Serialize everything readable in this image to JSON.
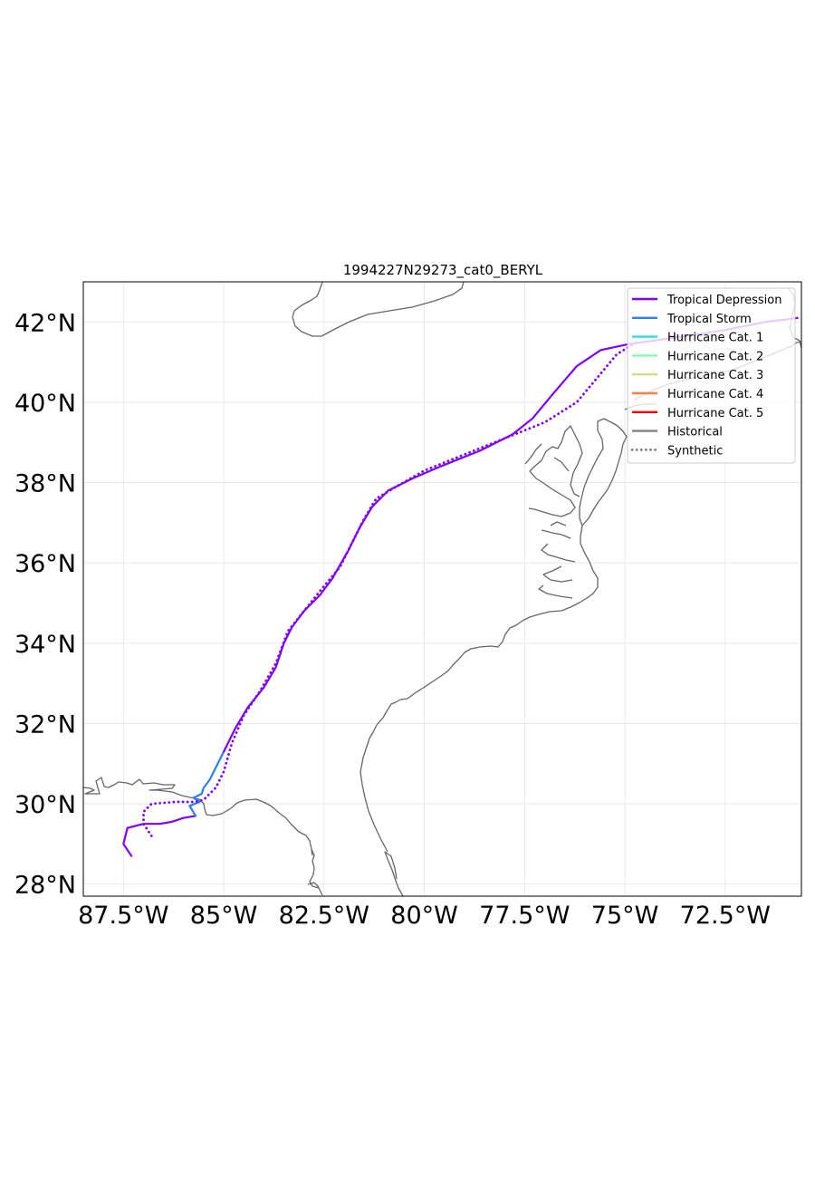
{
  "title": "1994227N29273_cat0_BERYL",
  "map": {
    "lon_range": [
      -88.5,
      -70.6
    ],
    "lat_range": [
      27.7,
      43.0
    ],
    "lon_ticks": [
      {
        "value": -87.5,
        "label": "87.5°W"
      },
      {
        "value": -85.0,
        "label": "85°W"
      },
      {
        "value": -82.5,
        "label": "82.5°W"
      },
      {
        "value": -80.0,
        "label": "80°W"
      },
      {
        "value": -77.5,
        "label": "77.5°W"
      },
      {
        "value": -75.0,
        "label": "75°W"
      },
      {
        "value": -72.5,
        "label": "72.5°W"
      }
    ],
    "lat_ticks": [
      {
        "value": 28,
        "label": "28°N"
      },
      {
        "value": 30,
        "label": "30°N"
      },
      {
        "value": 32,
        "label": "32°N"
      },
      {
        "value": 34,
        "label": "34°N"
      },
      {
        "value": 36,
        "label": "36°N"
      },
      {
        "value": 38,
        "label": "38°N"
      },
      {
        "value": 40,
        "label": "40°N"
      },
      {
        "value": 42,
        "label": "42°N"
      }
    ],
    "gridlines": true,
    "coastline_color": "#666666"
  },
  "legend": {
    "placement": "top-right",
    "entries": [
      {
        "label": "Tropical Depression",
        "color": "#7f00ff",
        "style": "solid"
      },
      {
        "label": "Tropical Storm",
        "color": "#2c7fef",
        "style": "solid"
      },
      {
        "label": "Hurricane Cat. 1",
        "color": "#2adddd",
        "style": "solid"
      },
      {
        "label": "Hurricane Cat. 2",
        "color": "#80ffb4",
        "style": "solid"
      },
      {
        "label": "Hurricane Cat. 3",
        "color": "#d4dd80",
        "style": "solid"
      },
      {
        "label": "Hurricane Cat. 4",
        "color": "#ff7f43",
        "style": "solid"
      },
      {
        "label": "Hurricane Cat. 5",
        "color": "#ff0000",
        "style": "solid"
      },
      {
        "label": "Historical",
        "color": "#808080",
        "style": "solid"
      },
      {
        "label": "Synthetic",
        "color": "#808080",
        "style": "dotted"
      }
    ]
  },
  "tracks": {
    "historical": [
      {
        "category": "Tropical Depression",
        "points": [
          [
            -87.3,
            28.7
          ],
          [
            -87.5,
            29.0
          ],
          [
            -87.4,
            29.4
          ],
          [
            -87.0,
            29.5
          ],
          [
            -86.6,
            29.5
          ],
          [
            -86.3,
            29.55
          ],
          [
            -86.0,
            29.65
          ],
          [
            -85.7,
            29.7
          ]
        ]
      },
      {
        "category": "Tropical Storm",
        "points": [
          [
            -85.7,
            29.7
          ],
          [
            -85.85,
            29.95
          ],
          [
            -85.6,
            30.05
          ],
          [
            -85.75,
            30.15
          ],
          [
            -85.55,
            30.25
          ],
          [
            -85.5,
            30.4
          ],
          [
            -85.35,
            30.6
          ],
          [
            -85.2,
            30.9
          ],
          [
            -85.0,
            31.3
          ]
        ]
      },
      {
        "category": "Tropical Depression",
        "points": [
          [
            -85.0,
            31.3
          ],
          [
            -84.7,
            31.9
          ],
          [
            -84.4,
            32.4
          ],
          [
            -84.0,
            32.9
          ],
          [
            -83.7,
            33.4
          ],
          [
            -83.5,
            34.0
          ],
          [
            -83.3,
            34.4
          ],
          [
            -83.0,
            34.8
          ],
          [
            -82.6,
            35.2
          ],
          [
            -82.3,
            35.6
          ],
          [
            -81.9,
            36.3
          ],
          [
            -81.6,
            36.9
          ],
          [
            -81.3,
            37.4
          ],
          [
            -80.9,
            37.8
          ],
          [
            -80.3,
            38.1
          ],
          [
            -79.6,
            38.4
          ],
          [
            -78.6,
            38.8
          ],
          [
            -77.8,
            39.2
          ],
          [
            -77.3,
            39.6
          ],
          [
            -76.8,
            40.2
          ],
          [
            -76.2,
            40.9
          ],
          [
            -75.6,
            41.3
          ],
          [
            -74.9,
            41.45
          ],
          [
            -73.8,
            41.6
          ],
          [
            -72.5,
            41.8
          ],
          [
            -71.5,
            42.0
          ],
          [
            -70.7,
            42.1
          ]
        ]
      }
    ],
    "synthetic": [
      {
        "category": "Tropical Depression",
        "points": [
          [
            -86.8,
            29.2
          ],
          [
            -87.0,
            29.5
          ],
          [
            -87.0,
            29.8
          ],
          [
            -86.8,
            30.0
          ],
          [
            -86.2,
            30.05
          ],
          [
            -85.7,
            30.05
          ],
          [
            -85.5,
            30.1
          ],
          [
            -85.2,
            30.4
          ],
          [
            -85.0,
            30.8
          ],
          [
            -84.8,
            31.5
          ],
          [
            -84.5,
            32.2
          ],
          [
            -84.1,
            32.8
          ],
          [
            -83.7,
            33.5
          ],
          [
            -83.4,
            34.3
          ],
          [
            -83.0,
            34.8
          ],
          [
            -82.6,
            35.3
          ],
          [
            -82.1,
            35.9
          ],
          [
            -81.8,
            36.5
          ],
          [
            -81.5,
            37.1
          ],
          [
            -81.2,
            37.6
          ],
          [
            -80.7,
            37.9
          ],
          [
            -80.0,
            38.3
          ],
          [
            -79.0,
            38.7
          ],
          [
            -78.0,
            39.1
          ],
          [
            -77.0,
            39.5
          ],
          [
            -76.2,
            40.0
          ],
          [
            -75.7,
            40.6
          ],
          [
            -75.2,
            41.2
          ],
          [
            -74.7,
            41.5
          ]
        ]
      }
    ]
  }
}
